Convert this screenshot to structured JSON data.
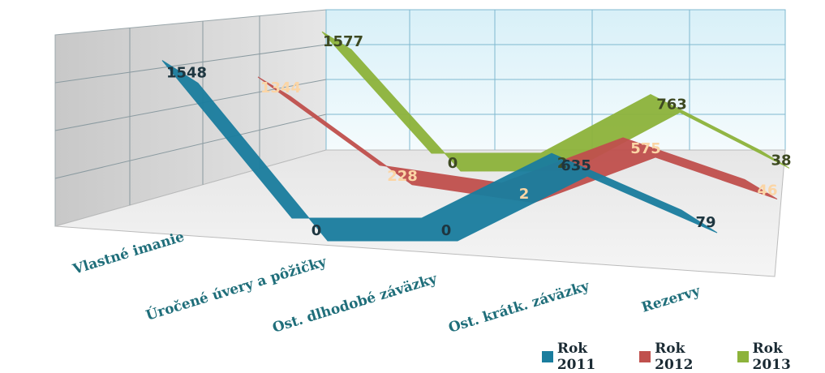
{
  "chart_data": {
    "type": "line",
    "style": "3d-ribbon",
    "categories": [
      "Vlastné imanie",
      "Úročené úvery a pôžičky",
      "Ost. dlhodobé záväzky",
      "Ost. krátk. záväzky",
      "Rezervy"
    ],
    "series": [
      {
        "name": "Rok 2011",
        "values": [
          1548,
          0,
          0,
          635,
          79
        ],
        "color": "#1a7d9e",
        "label_color": "#1e3640"
      },
      {
        "name": "Rok 2012",
        "values": [
          1344,
          228,
          2,
          575,
          46
        ],
        "color": "#c0504d",
        "label_color": "#fbd5a5"
      },
      {
        "name": "Rok 2013",
        "values": [
          1577,
          0,
          2,
          763,
          38
        ],
        "color": "#8db33b",
        "label_color": "#3e4a22"
      }
    ],
    "gridlines": true,
    "legend_position": "bottom-right"
  }
}
